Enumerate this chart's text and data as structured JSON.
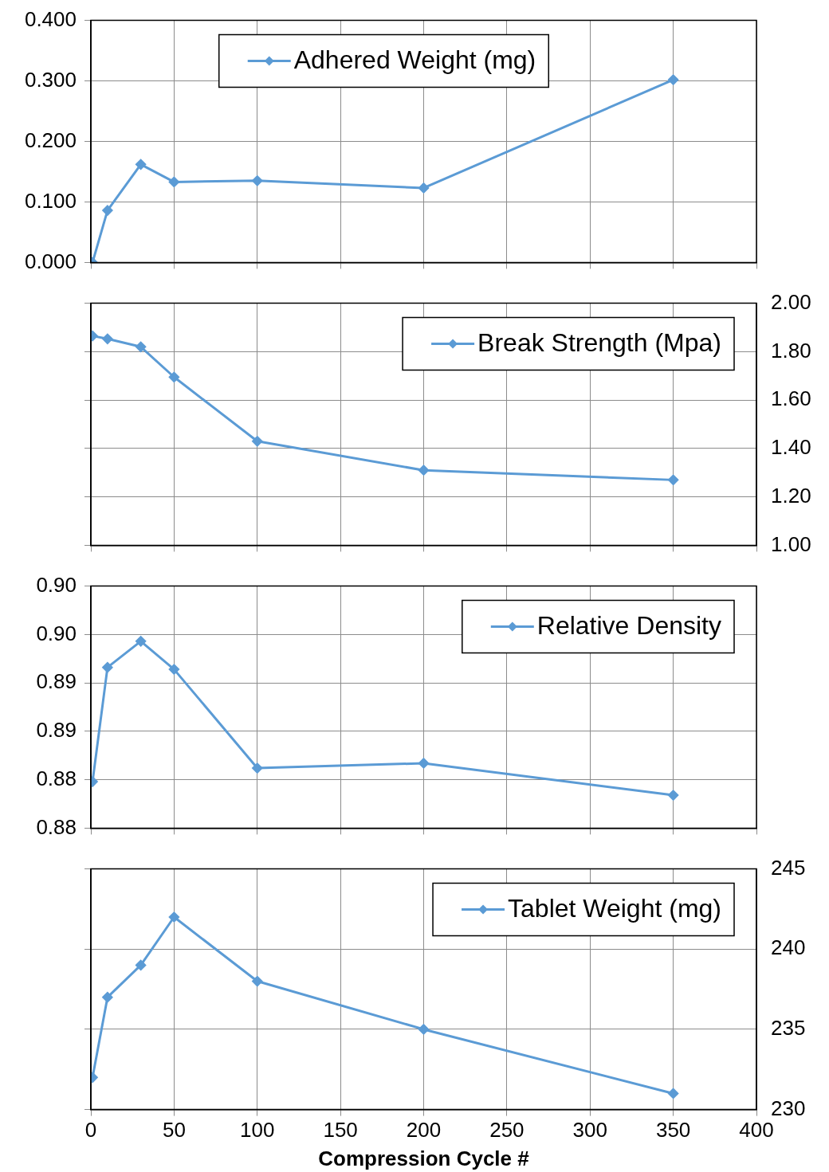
{
  "chart_data": [
    {
      "type": "line",
      "x": [
        1,
        10,
        30,
        50,
        100,
        200,
        350
      ],
      "xlim": [
        0,
        400
      ],
      "xticks": [
        0,
        50,
        100,
        150,
        200,
        250,
        300,
        350,
        400
      ],
      "series": [
        {
          "name": "Adhered Weight (mg)",
          "color": "#5b9bd5",
          "values": [
            0,
            0.086,
            0.162,
            0.133,
            0.135,
            0.123,
            0.302
          ]
        }
      ],
      "ylim": [
        0,
        0.4
      ],
      "yticks": [
        {
          "value": 0,
          "label": "0.000"
        },
        {
          "value": 0.1,
          "label": "0.100"
        },
        {
          "value": 0.2,
          "label": "0.200"
        },
        {
          "value": 0.3,
          "label": "0.300"
        },
        {
          "value": 0.4,
          "label": "0.400"
        }
      ],
      "grid": true,
      "legend": "top",
      "marker": "diamond",
      "tick_labels": "y"
    },
    {
      "type": "line",
      "x": [
        1,
        10,
        30,
        50,
        100,
        200,
        350
      ],
      "xlim": [
        0,
        400
      ],
      "xticks": [
        0,
        50,
        100,
        150,
        200,
        250,
        300,
        350,
        400
      ],
      "series": [
        {
          "name": "Break Strength (Mpa)",
          "color": "#5b9bd5",
          "axis": "y2",
          "values": [
            1.865,
            1.853,
            1.82,
            1.695,
            1.43,
            1.31,
            1.27
          ]
        }
      ],
      "y2lim": [
        1,
        2
      ],
      "y2ticks": [
        {
          "value": 1,
          "label": "1.00"
        },
        {
          "value": 1.2,
          "label": "1.20"
        },
        {
          "value": 1.4,
          "label": "1.40"
        },
        {
          "value": 1.6,
          "label": "1.60"
        },
        {
          "value": 1.8,
          "label": "1.80"
        },
        {
          "value": 2,
          "label": "2.00"
        }
      ],
      "grid": true,
      "legend": "top right",
      "marker": "diamond",
      "tick_labels": "y"
    },
    {
      "type": "line",
      "x": [
        1,
        10,
        30,
        50,
        100,
        200,
        350
      ],
      "xlim": [
        0,
        400
      ],
      "xticks": [
        0,
        50,
        100,
        150,
        200,
        250,
        300,
        350,
        400
      ],
      "series": [
        {
          "name": "Relative Density",
          "color": "#5b9bd5",
          "values": [
            0.8798,
            0.8916,
            0.8943,
            0.8914,
            0.8812,
            0.8817,
            0.8784
          ]
        }
      ],
      "ylim": [
        0.875,
        0.9
      ],
      "yticks": [
        {
          "value": 0.875,
          "label": "0.88"
        },
        {
          "value": 0.88,
          "label": "0.88"
        },
        {
          "value": 0.885,
          "label": "0.89"
        },
        {
          "value": 0.89,
          "label": "0.89"
        },
        {
          "value": 0.895,
          "label": "0.90"
        },
        {
          "value": 0.9,
          "label": "0.90"
        }
      ],
      "grid": true,
      "legend": "top right",
      "marker": "diamond",
      "tick_labels": "y"
    },
    {
      "type": "line",
      "x": [
        1,
        10,
        30,
        50,
        100,
        200,
        350
      ],
      "xlim": [
        0,
        400
      ],
      "xticks": [
        0,
        50,
        100,
        150,
        200,
        250,
        300,
        350,
        400
      ],
      "xlabel": "Compression Cycle #",
      "series": [
        {
          "name": "Tablet Weight (mg)",
          "color": "#5b9bd5",
          "axis": "y2",
          "values": [
            232,
            237,
            239,
            242,
            238,
            235,
            231
          ]
        }
      ],
      "y2lim": [
        230,
        245
      ],
      "y2ticks": [
        230,
        235,
        240,
        245
      ],
      "grid": true,
      "legend": "top right",
      "marker": "diamond"
    }
  ]
}
